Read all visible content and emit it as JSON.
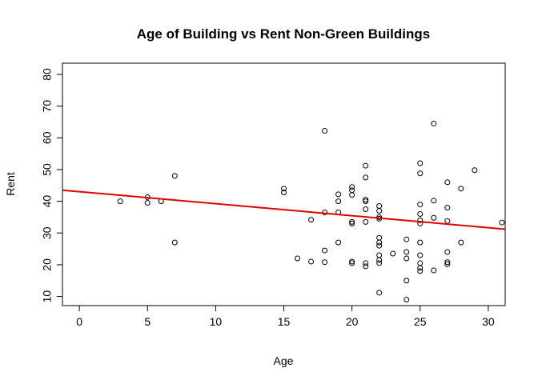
{
  "chart_data": {
    "type": "scatter",
    "title": "Age of Building vs Rent Non-Green Buildings",
    "xlabel": "Age",
    "ylabel": "Rent",
    "xlim": [
      -1.24,
      31.24
    ],
    "ylim": [
      7.12,
      83.52
    ],
    "x_ticks": [
      0,
      5,
      10,
      15,
      20,
      25,
      30
    ],
    "y_ticks": [
      10,
      20,
      30,
      40,
      50,
      60,
      70,
      80
    ],
    "grid": false,
    "legend": "none",
    "colors": {
      "points": "#000000",
      "fit_line": "#e00000",
      "frame": "#000000"
    },
    "fit_line": {
      "x": [
        -1.24,
        31.24
      ],
      "y": [
        43.5,
        31.2
      ]
    },
    "points": [
      {
        "x": 3,
        "y": 40.0
      },
      {
        "x": 5,
        "y": 41.3
      },
      {
        "x": 5,
        "y": 39.5
      },
      {
        "x": 6,
        "y": 40.0
      },
      {
        "x": 7,
        "y": 48.0
      },
      {
        "x": 7,
        "y": 27.0
      },
      {
        "x": 15,
        "y": 44.0
      },
      {
        "x": 15,
        "y": 42.8
      },
      {
        "x": 16,
        "y": 22.0
      },
      {
        "x": 17,
        "y": 34.2
      },
      {
        "x": 17,
        "y": 21.0
      },
      {
        "x": 18,
        "y": 62.2
      },
      {
        "x": 18,
        "y": 36.5
      },
      {
        "x": 18,
        "y": 24.5
      },
      {
        "x": 18,
        "y": 20.8
      },
      {
        "x": 19,
        "y": 42.2
      },
      {
        "x": 19,
        "y": 40.0
      },
      {
        "x": 19,
        "y": 36.5
      },
      {
        "x": 19,
        "y": 27.0
      },
      {
        "x": 20,
        "y": 44.5
      },
      {
        "x": 20,
        "y": 43.5
      },
      {
        "x": 20,
        "y": 42.0
      },
      {
        "x": 20,
        "y": 33.5
      },
      {
        "x": 20,
        "y": 33.0
      },
      {
        "x": 20,
        "y": 21.0
      },
      {
        "x": 20,
        "y": 20.5
      },
      {
        "x": 21,
        "y": 51.2
      },
      {
        "x": 21,
        "y": 47.5
      },
      {
        "x": 21,
        "y": 40.5
      },
      {
        "x": 21,
        "y": 40.0
      },
      {
        "x": 21,
        "y": 37.5
      },
      {
        "x": 21,
        "y": 33.5
      },
      {
        "x": 21,
        "y": 20.5
      },
      {
        "x": 21,
        "y": 19.5
      },
      {
        "x": 22,
        "y": 38.5
      },
      {
        "x": 22,
        "y": 37.0
      },
      {
        "x": 22,
        "y": 35.0
      },
      {
        "x": 22,
        "y": 34.5
      },
      {
        "x": 22,
        "y": 28.5
      },
      {
        "x": 22,
        "y": 27.0
      },
      {
        "x": 22,
        "y": 26.0
      },
      {
        "x": 22,
        "y": 23.0
      },
      {
        "x": 22,
        "y": 21.5
      },
      {
        "x": 22,
        "y": 20.5
      },
      {
        "x": 22,
        "y": 11.2
      },
      {
        "x": 23,
        "y": 23.5
      },
      {
        "x": 24,
        "y": 28.0
      },
      {
        "x": 24,
        "y": 24.0
      },
      {
        "x": 24,
        "y": 22.0
      },
      {
        "x": 24,
        "y": 15.0
      },
      {
        "x": 24,
        "y": 9.0
      },
      {
        "x": 25,
        "y": 52.0
      },
      {
        "x": 25,
        "y": 48.8
      },
      {
        "x": 25,
        "y": 39.0
      },
      {
        "x": 25,
        "y": 36.0
      },
      {
        "x": 25,
        "y": 34.0
      },
      {
        "x": 25,
        "y": 33.0
      },
      {
        "x": 25,
        "y": 27.0
      },
      {
        "x": 25,
        "y": 23.0
      },
      {
        "x": 25,
        "y": 20.5
      },
      {
        "x": 25,
        "y": 19.0
      },
      {
        "x": 25,
        "y": 18.0
      },
      {
        "x": 26,
        "y": 64.5
      },
      {
        "x": 26,
        "y": 40.2
      },
      {
        "x": 26,
        "y": 34.8
      },
      {
        "x": 26,
        "y": 18.2
      },
      {
        "x": 27,
        "y": 46.0
      },
      {
        "x": 27,
        "y": 38.0
      },
      {
        "x": 27,
        "y": 33.8
      },
      {
        "x": 27,
        "y": 24.0
      },
      {
        "x": 27,
        "y": 20.8
      },
      {
        "x": 27,
        "y": 20.2
      },
      {
        "x": 28,
        "y": 44.0
      },
      {
        "x": 28,
        "y": 27.0
      },
      {
        "x": 29,
        "y": 49.8
      },
      {
        "x": 31,
        "y": 33.3
      }
    ]
  }
}
